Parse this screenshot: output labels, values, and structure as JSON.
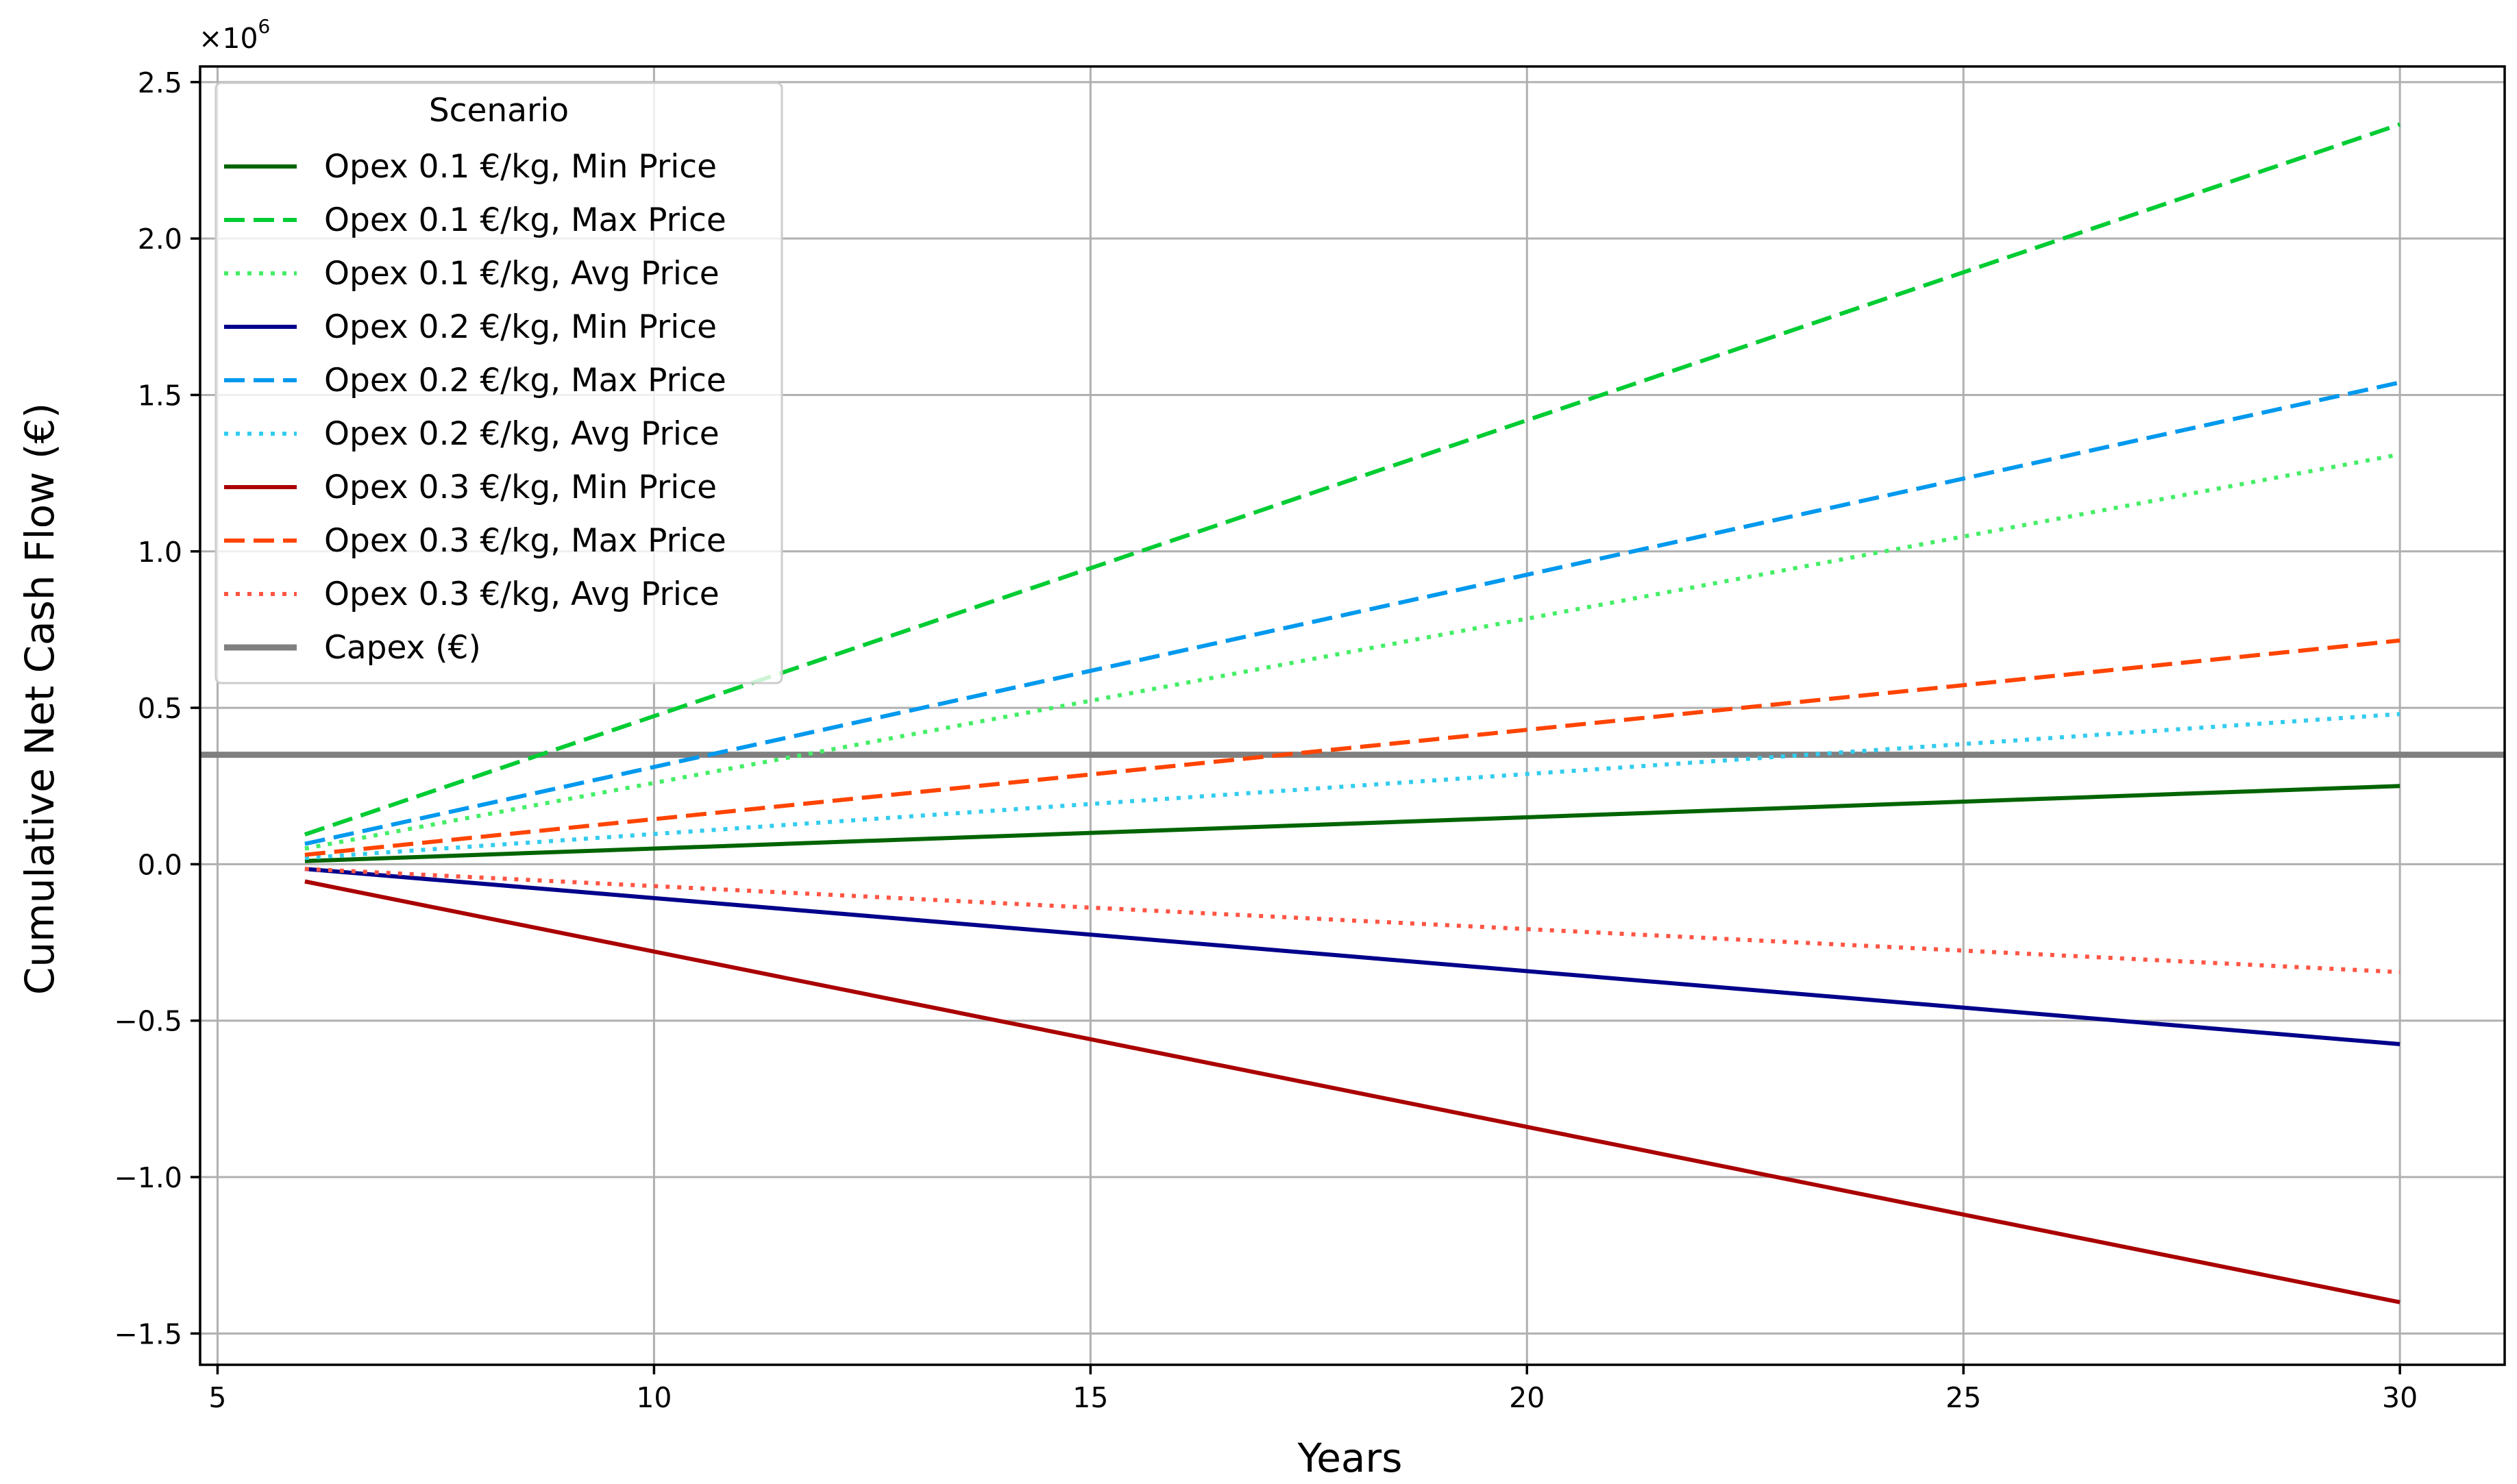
{
  "chart_data": {
    "type": "line",
    "title": "",
    "xlabel": "Years",
    "ylabel": "Cumulative Net Cash Flow (€)",
    "y_offset_text": "×10",
    "y_offset_exponent": "6",
    "xlim": [
      4.8,
      31.2
    ],
    "ylim": [
      -1.6,
      2.55
    ],
    "x_ticks": [
      5,
      10,
      15,
      20,
      25,
      30
    ],
    "x_tick_labels": [
      "5",
      "10",
      "15",
      "20",
      "25",
      "30"
    ],
    "y_ticks": [
      -1.5,
      -1.0,
      -0.5,
      0.0,
      0.5,
      1.0,
      1.5,
      2.0,
      2.5
    ],
    "y_tick_labels": [
      "−1.5",
      "−1.0",
      "−0.5",
      "0.0",
      "0.5",
      "1.0",
      "1.5",
      "2.0",
      "2.5"
    ],
    "grid": true,
    "legend_title": "Scenario",
    "legend_position": "top-left",
    "x": [
      6,
      30
    ],
    "series": [
      {
        "name": "Opex 0.1 €/kg, Min Price",
        "values": [
          0.01,
          0.25
        ],
        "color": "#006400",
        "style": "solid"
      },
      {
        "name": "Opex 0.1 €/kg, Max Price",
        "values": [
          0.095,
          2.365
        ],
        "color": "#00cc33",
        "style": "dashed"
      },
      {
        "name": "Opex 0.1 €/kg, Avg Price",
        "values": [
          0.05,
          1.31
        ],
        "color": "#44ee66",
        "style": "dotted"
      },
      {
        "name": "Opex 0.2 €/kg, Min Price",
        "values": [
          -0.015,
          -0.575
        ],
        "color": "#00008b",
        "style": "solid"
      },
      {
        "name": "Opex 0.2 €/kg, Max Price",
        "values": [
          0.065,
          1.54
        ],
        "color": "#0099ee",
        "style": "dashed"
      },
      {
        "name": "Opex 0.2 €/kg, Avg Price",
        "values": [
          0.02,
          0.48
        ],
        "color": "#33ccee",
        "style": "dotted"
      },
      {
        "name": "Opex 0.3 €/kg, Min Price",
        "values": [
          -0.055,
          -1.4
        ],
        "color": "#aa0000",
        "style": "solid"
      },
      {
        "name": "Opex 0.3 €/kg, Max Price",
        "values": [
          0.03,
          0.715
        ],
        "color": "#ff4400",
        "style": "dashed"
      },
      {
        "name": "Opex 0.3 €/kg, Avg Price",
        "values": [
          -0.015,
          -0.345
        ],
        "color": "#ff5544",
        "style": "dotted"
      }
    ],
    "reference_lines": [
      {
        "name": "Capex (€)",
        "y": 0.35,
        "color": "#808080",
        "style": "solid"
      }
    ]
  }
}
